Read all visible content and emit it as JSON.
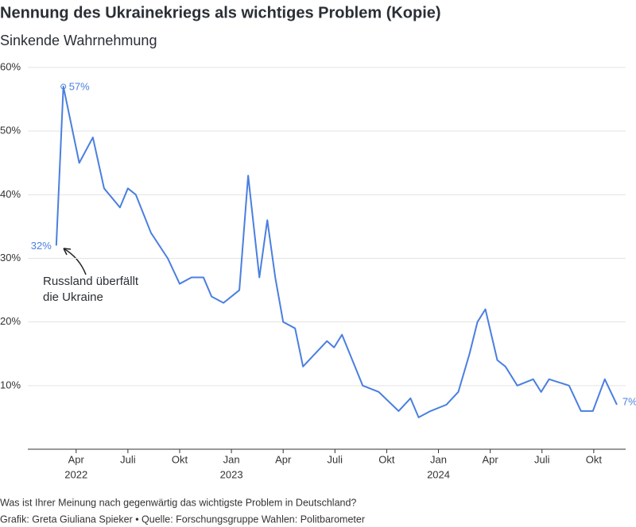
{
  "chart_data": {
    "type": "line",
    "title": "Nennung des Ukrainekriegs als wichtiges Problem (Kopie)",
    "subtitle": "Sinkende Wahrnehmung",
    "note": "Was ist Ihrer Meinung nach gegenwärtig das wichtigste Problem in Deutschland?",
    "credit": "Grafik: Greta Giuliana Spieker • Quelle: Forschungsgruppe Wahlen: Politbarometer",
    "annotation": [
      "Russland überfällt",
      "die Ukraine"
    ],
    "x": [
      1.85,
      2.26,
      3.18,
      3.97,
      4.62,
      5.54,
      6.0,
      6.46,
      7.34,
      8.31,
      9.0,
      9.69,
      10.38,
      10.85,
      11.54,
      12.46,
      12.97,
      13.62,
      14.08,
      14.54,
      15.0,
      15.69,
      16.15,
      17.54,
      17.95,
      18.41,
      19.61,
      20.54,
      21.69,
      22.38,
      22.85,
      23.54,
      24.46,
      25.15,
      25.8,
      26.26,
      26.72,
      27.41,
      27.88,
      28.57,
      29.49,
      29.95,
      30.41,
      31.57,
      32.26,
      32.95,
      33.64,
      34.34
    ],
    "series": [
      {
        "color": "#4a7fe0",
        "values": [
          32,
          57,
          45,
          49,
          41,
          38,
          41,
          40,
          34,
          30,
          26,
          27,
          27,
          24,
          23,
          25,
          43,
          27,
          36,
          27,
          20,
          19,
          13,
          17,
          16,
          18,
          10,
          9,
          6,
          8,
          5,
          6,
          7,
          9,
          15,
          20,
          22,
          14,
          13,
          10,
          11,
          9,
          11,
          10,
          6,
          6,
          11,
          7
        ],
        "value_labels": [
          "32%",
          "57%",
          null,
          null,
          null,
          null,
          null,
          null,
          null,
          null,
          null,
          null,
          null,
          null,
          null,
          null,
          null,
          null,
          null,
          null,
          null,
          null,
          null,
          null,
          null,
          null,
          null,
          null,
          null,
          null,
          null,
          null,
          null,
          null,
          null,
          null,
          null,
          null,
          null,
          null,
          null,
          null,
          null,
          null,
          null,
          null,
          null,
          "7%"
        ]
      }
    ],
    "xlim": [
      0.2,
      34.85
    ],
    "xticks": [
      {
        "value": 3,
        "label": "Apr"
      },
      {
        "value": 6,
        "label": "Juli"
      },
      {
        "value": 9,
        "label": "Okt"
      },
      {
        "value": 12,
        "label": "Jan"
      },
      {
        "value": 15,
        "label": "Apr"
      },
      {
        "value": 18,
        "label": "Juli"
      },
      {
        "value": 21,
        "label": "Okt"
      },
      {
        "value": 24,
        "label": "Jan"
      },
      {
        "value": 27,
        "label": "Apr"
      },
      {
        "value": 30,
        "label": "Juli"
      },
      {
        "value": 33,
        "label": "Okt"
      }
    ],
    "x_year_labels": [
      {
        "value": 3,
        "label": "2022"
      },
      {
        "value": 12,
        "label": "2023"
      },
      {
        "value": 24,
        "label": "2024"
      }
    ],
    "ylim": [
      0,
      60
    ],
    "yticks": [
      {
        "value": 10,
        "label": "10%"
      },
      {
        "value": 20,
        "label": "20%"
      },
      {
        "value": 30,
        "label": "30%"
      },
      {
        "value": 40,
        "label": "40%"
      },
      {
        "value": 50,
        "label": "50%"
      },
      {
        "value": 60,
        "label": "60%"
      }
    ],
    "grid": true
  }
}
